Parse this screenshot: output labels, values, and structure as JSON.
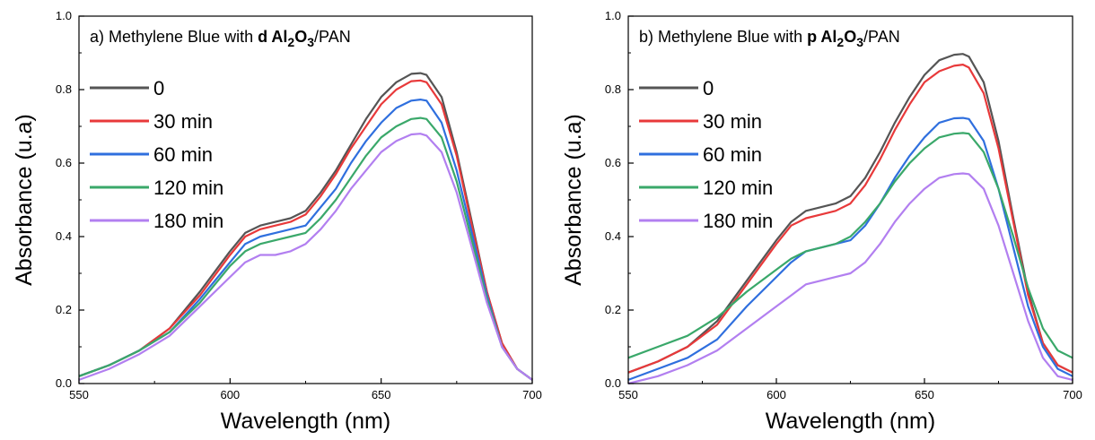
{
  "chart_data": [
    {
      "panel": "a",
      "type": "line",
      "title": {
        "prefix": "a) Methylene Blue with ",
        "bold": "d Al",
        "sub1": "2",
        "o": "O",
        "sub2": "3",
        "suffix": "/PAN"
      },
      "xlabel": "Wavelength (nm)",
      "ylabel": "Absorbance (u.a)",
      "xlim": [
        550,
        700
      ],
      "ylim": [
        0,
        1.0
      ],
      "xticks": [
        "550",
        "600",
        "650",
        "700"
      ],
      "yticks": [
        "0.0",
        "0.2",
        "0.4",
        "0.6",
        "0.8",
        "1.0"
      ],
      "legend_position": "top-left",
      "x": [
        550,
        560,
        570,
        580,
        590,
        600,
        605,
        610,
        615,
        620,
        625,
        630,
        635,
        640,
        645,
        650,
        655,
        660,
        663,
        665,
        670,
        675,
        680,
        685,
        690,
        695,
        700
      ],
      "series": [
        {
          "name": "0",
          "color": "#555555",
          "values": [
            0.02,
            0.05,
            0.09,
            0.15,
            0.25,
            0.36,
            0.41,
            0.43,
            0.44,
            0.45,
            0.47,
            0.52,
            0.58,
            0.65,
            0.72,
            0.78,
            0.82,
            0.843,
            0.845,
            0.84,
            0.78,
            0.63,
            0.44,
            0.25,
            0.11,
            0.04,
            0.01
          ]
        },
        {
          "name": "30 min",
          "color": "#e8393a",
          "values": [
            0.02,
            0.05,
            0.09,
            0.15,
            0.24,
            0.35,
            0.4,
            0.42,
            0.43,
            0.44,
            0.46,
            0.51,
            0.57,
            0.64,
            0.7,
            0.76,
            0.8,
            0.823,
            0.825,
            0.82,
            0.76,
            0.62,
            0.43,
            0.25,
            0.11,
            0.04,
            0.01
          ]
        },
        {
          "name": "60 min",
          "color": "#2f6fde",
          "values": [
            0.02,
            0.05,
            0.09,
            0.14,
            0.23,
            0.33,
            0.38,
            0.4,
            0.41,
            0.42,
            0.43,
            0.48,
            0.53,
            0.6,
            0.66,
            0.71,
            0.75,
            0.77,
            0.773,
            0.77,
            0.71,
            0.58,
            0.41,
            0.24,
            0.1,
            0.04,
            0.01
          ]
        },
        {
          "name": "120 min",
          "color": "#3aa86a",
          "values": [
            0.02,
            0.05,
            0.09,
            0.14,
            0.22,
            0.32,
            0.36,
            0.38,
            0.39,
            0.4,
            0.41,
            0.45,
            0.5,
            0.56,
            0.62,
            0.67,
            0.7,
            0.72,
            0.723,
            0.72,
            0.67,
            0.55,
            0.39,
            0.23,
            0.1,
            0.04,
            0.01
          ]
        },
        {
          "name": "180 min",
          "color": "#b27ff0",
          "values": [
            0.01,
            0.04,
            0.08,
            0.13,
            0.21,
            0.29,
            0.33,
            0.35,
            0.35,
            0.36,
            0.38,
            0.42,
            0.47,
            0.53,
            0.58,
            0.63,
            0.66,
            0.678,
            0.68,
            0.675,
            0.63,
            0.52,
            0.37,
            0.22,
            0.1,
            0.04,
            0.01
          ]
        }
      ]
    },
    {
      "panel": "b",
      "type": "line",
      "title": {
        "prefix": "b) Methylene Blue with ",
        "bold": "p Al",
        "sub1": "2",
        "o": "O",
        "sub2": "3",
        "suffix": "/PAN"
      },
      "xlabel": "Wavelength (nm)",
      "ylabel": "Absorbance (u.a)",
      "xlim": [
        550,
        700
      ],
      "ylim": [
        0,
        1.0
      ],
      "xticks": [
        "550",
        "600",
        "650",
        "700"
      ],
      "yticks": [
        "0.0",
        "0.2",
        "0.4",
        "0.6",
        "0.8",
        "1.0"
      ],
      "legend_position": "top-left",
      "x": [
        550,
        560,
        570,
        580,
        590,
        600,
        605,
        610,
        615,
        620,
        625,
        630,
        635,
        640,
        645,
        650,
        655,
        660,
        663,
        665,
        670,
        675,
        680,
        685,
        690,
        695,
        700
      ],
      "series": [
        {
          "name": "0",
          "color": "#555555",
          "values": [
            0.03,
            0.06,
            0.1,
            0.17,
            0.28,
            0.39,
            0.44,
            0.47,
            0.48,
            0.49,
            0.51,
            0.56,
            0.63,
            0.71,
            0.78,
            0.84,
            0.88,
            0.895,
            0.897,
            0.89,
            0.82,
            0.66,
            0.45,
            0.25,
            0.11,
            0.05,
            0.03
          ]
        },
        {
          "name": "30 min",
          "color": "#e8393a",
          "values": [
            0.03,
            0.06,
            0.1,
            0.16,
            0.27,
            0.38,
            0.43,
            0.45,
            0.46,
            0.47,
            0.49,
            0.54,
            0.61,
            0.69,
            0.76,
            0.82,
            0.85,
            0.865,
            0.868,
            0.86,
            0.79,
            0.64,
            0.44,
            0.24,
            0.11,
            0.05,
            0.03
          ]
        },
        {
          "name": "60 min",
          "color": "#2f6fde",
          "values": [
            0.01,
            0.04,
            0.07,
            0.12,
            0.21,
            0.29,
            0.33,
            0.36,
            0.37,
            0.38,
            0.39,
            0.43,
            0.49,
            0.56,
            0.62,
            0.67,
            0.71,
            0.722,
            0.723,
            0.72,
            0.66,
            0.53,
            0.37,
            0.21,
            0.1,
            0.04,
            0.02
          ]
        },
        {
          "name": "120 min",
          "color": "#3aa86a",
          "values": [
            0.07,
            0.1,
            0.13,
            0.18,
            0.25,
            0.31,
            0.34,
            0.36,
            0.37,
            0.38,
            0.4,
            0.44,
            0.49,
            0.55,
            0.6,
            0.64,
            0.67,
            0.68,
            0.682,
            0.68,
            0.63,
            0.53,
            0.4,
            0.26,
            0.15,
            0.09,
            0.07
          ]
        },
        {
          "name": "180 min",
          "color": "#b27ff0",
          "values": [
            0.0,
            0.02,
            0.05,
            0.09,
            0.15,
            0.21,
            0.24,
            0.27,
            0.28,
            0.29,
            0.3,
            0.33,
            0.38,
            0.44,
            0.49,
            0.53,
            0.56,
            0.57,
            0.572,
            0.57,
            0.53,
            0.43,
            0.3,
            0.17,
            0.07,
            0.02,
            0.01
          ]
        }
      ]
    }
  ]
}
